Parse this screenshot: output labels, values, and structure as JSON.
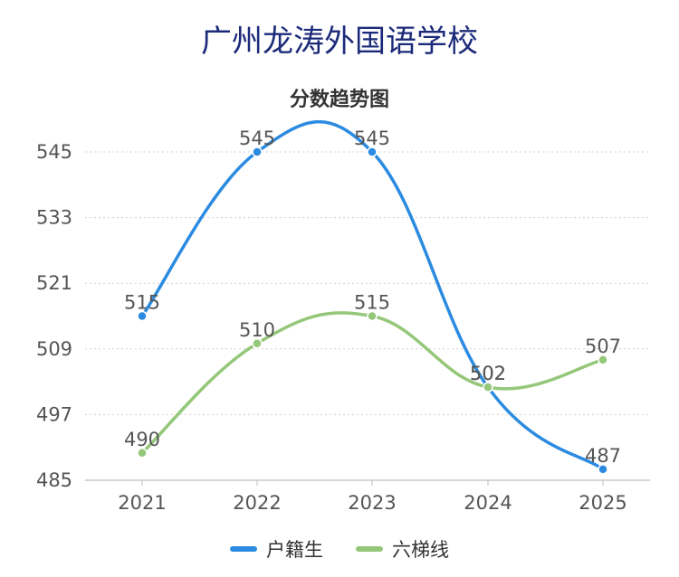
{
  "page_title": "广州龙涛外国语学校",
  "chart_data": {
    "type": "line",
    "title": "分数趋势图",
    "xlabel": "",
    "ylabel": "",
    "categories": [
      "2021",
      "2022",
      "2023",
      "2024",
      "2025"
    ],
    "ylim": [
      485,
      545
    ],
    "yticks": [
      "545",
      "533",
      "521",
      "509",
      "497",
      "485"
    ],
    "grid": true,
    "legend_position": "bottom",
    "series": [
      {
        "name": "户籍生",
        "color": "#2b8be0",
        "values": [
          515,
          545,
          545,
          502,
          487
        ]
      },
      {
        "name": "六梯线",
        "color": "#95c77a",
        "values": [
          490,
          510,
          515,
          502,
          507
        ]
      }
    ]
  }
}
